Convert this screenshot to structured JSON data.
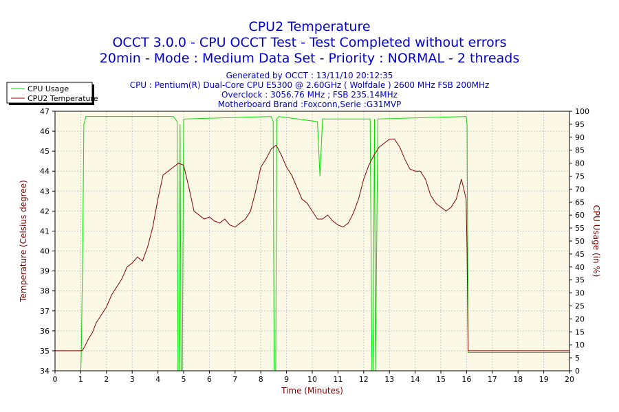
{
  "chart_data": {
    "type": "line",
    "title_lines": [
      "CPU2 Temperature",
      "OCCT 3.0.0 - CPU OCCT Test - Test Completed without errors",
      "20min - Mode : Medium Data Set - Priority : NORMAL - 2 threads"
    ],
    "info_lines": [
      "Generated by OCCT : 13/11/10 20:12:35",
      "CPU : Pentium(R) Dual-Core CPU E5300 @ 2.60GHz ( Wolfdale ) 2600 MHz FSB 200MHz",
      "Overclock : 3056.76 MHz ; FSB 235.14MHz",
      "Motherboard Brand :Foxconn,Serie :G31MVP"
    ],
    "xlabel": "Time (Minutes)",
    "ylabel_left": "Temperature (Celsius degree)",
    "ylabel_right": "CPU Usage (in %)",
    "xlim": [
      0,
      20
    ],
    "ylim_left": [
      34,
      47
    ],
    "ylim_right": [
      0,
      100
    ],
    "x_ticks": [
      "0",
      "1",
      "2",
      "3",
      "4",
      "5",
      "6",
      "7",
      "8",
      "9",
      "10",
      "11",
      "12",
      "13",
      "14",
      "15",
      "16",
      "17",
      "18",
      "19",
      "20"
    ],
    "y_left_ticks": [
      "34",
      "35",
      "36",
      "37",
      "38",
      "39",
      "40",
      "41",
      "42",
      "43",
      "44",
      "45",
      "46",
      "47"
    ],
    "y_right_ticks": [
      "0",
      "5",
      "10",
      "15",
      "20",
      "25",
      "30",
      "35",
      "40",
      "45",
      "50",
      "55",
      "60",
      "65",
      "70",
      "75",
      "80",
      "85",
      "90",
      "95",
      "100"
    ],
    "legend_position": "top-left",
    "grid": true,
    "series": [
      {
        "name": "CPU Usage",
        "axis": "right",
        "color": "#00dd00",
        "x": [
          0,
          1.0,
          1.02,
          1.08,
          1.12,
          1.2,
          4.6,
          4.75,
          4.78,
          4.82,
          4.86,
          4.9,
          4.95,
          5.0,
          8.4,
          8.48,
          8.52,
          8.58,
          8.62,
          8.7,
          10.2,
          10.3,
          10.4,
          12.25,
          12.32,
          12.36,
          12.42,
          12.46,
          12.55,
          15.98,
          16.02,
          16.06,
          20
        ],
        "y": [
          0,
          0,
          5,
          50,
          95,
          98,
          98,
          96,
          0,
          0,
          95,
          0,
          0,
          97,
          98,
          96,
          0,
          0,
          97,
          98,
          96,
          75,
          97,
          97,
          0,
          0,
          97,
          0,
          97,
          98,
          95,
          7,
          7
        ]
      },
      {
        "name": "CPU2 Temperature",
        "axis": "left",
        "color": "#800000",
        "x": [
          0,
          1.05,
          1.15,
          1.3,
          1.45,
          1.6,
          1.8,
          2.0,
          2.2,
          2.4,
          2.6,
          2.8,
          3.0,
          3.2,
          3.4,
          3.6,
          3.8,
          4.0,
          4.2,
          4.4,
          4.6,
          4.8,
          5.0,
          5.2,
          5.4,
          5.6,
          5.8,
          6.0,
          6.2,
          6.4,
          6.6,
          6.8,
          7.0,
          7.2,
          7.4,
          7.6,
          7.8,
          8.0,
          8.2,
          8.4,
          8.6,
          8.8,
          9.0,
          9.2,
          9.4,
          9.6,
          9.8,
          10.0,
          10.2,
          10.4,
          10.6,
          10.8,
          11.0,
          11.2,
          11.4,
          11.6,
          11.8,
          12.0,
          12.2,
          12.4,
          12.6,
          12.8,
          13.0,
          13.2,
          13.4,
          13.6,
          13.8,
          14.0,
          14.2,
          14.4,
          14.6,
          14.8,
          15.0,
          15.2,
          15.4,
          15.6,
          15.8,
          15.98,
          16.02,
          16.06,
          20
        ],
        "y": [
          35,
          35,
          35.2,
          35.6,
          35.9,
          36.4,
          36.8,
          37.2,
          37.8,
          38.2,
          38.6,
          39.2,
          39.4,
          39.7,
          39.5,
          40.2,
          41.2,
          42.6,
          43.8,
          44.0,
          44.2,
          44.4,
          44.3,
          43.2,
          42.0,
          41.8,
          41.6,
          41.7,
          41.5,
          41.4,
          41.6,
          41.3,
          41.2,
          41.4,
          41.6,
          42.0,
          43.0,
          44.2,
          44.6,
          45.1,
          45.3,
          44.8,
          44.2,
          43.8,
          43.2,
          42.6,
          42.4,
          42.0,
          41.6,
          41.6,
          41.8,
          41.5,
          41.3,
          41.2,
          41.4,
          41.9,
          42.6,
          43.6,
          44.3,
          44.8,
          45.2,
          45.4,
          45.6,
          45.6,
          45.2,
          44.6,
          44.1,
          44.0,
          44.0,
          43.6,
          42.8,
          42.4,
          42.2,
          42.0,
          42.2,
          42.6,
          43.6,
          42.6,
          40.0,
          35,
          35
        ]
      }
    ]
  }
}
